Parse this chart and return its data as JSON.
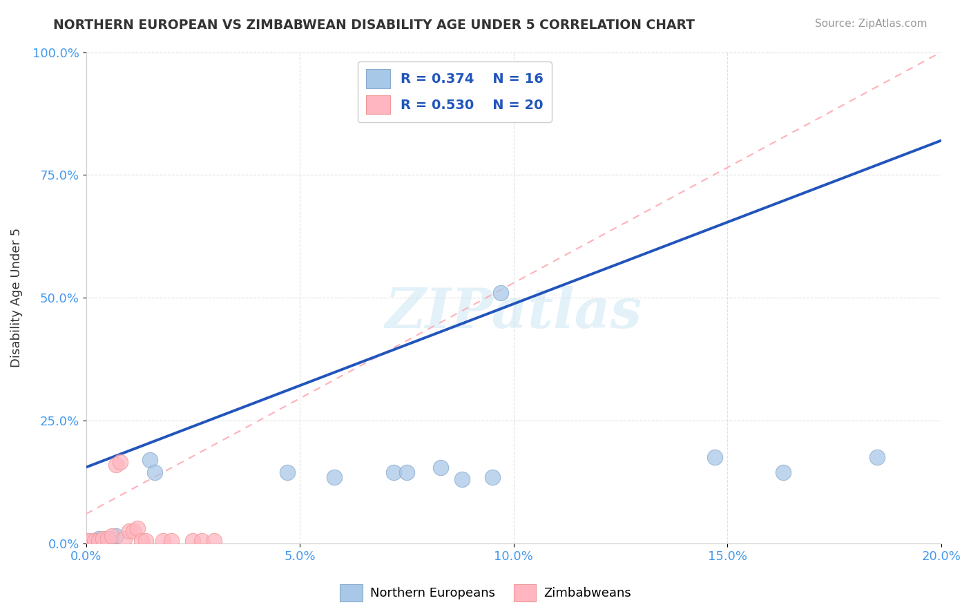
{
  "title": "NORTHERN EUROPEAN VS ZIMBABWEAN DISABILITY AGE UNDER 5 CORRELATION CHART",
  "source": "Source: ZipAtlas.com",
  "ylabel": "Disability Age Under 5",
  "xlabel_ticks": [
    "0.0%",
    "5.0%",
    "10.0%",
    "15.0%",
    "20.0%"
  ],
  "xlabel_vals": [
    0.0,
    0.05,
    0.1,
    0.15,
    0.2
  ],
  "ylabel_ticks": [
    "0.0%",
    "25.0%",
    "50.0%",
    "75.0%",
    "100.0%"
  ],
  "ylabel_vals": [
    0.0,
    0.25,
    0.5,
    0.75,
    1.0
  ],
  "xlim": [
    0.0,
    0.2
  ],
  "ylim": [
    0.0,
    1.0
  ],
  "watermark": "ZIPatlas",
  "legend_r_blue": "R = 0.374",
  "legend_n_blue": "N = 16",
  "legend_r_pink": "R = 0.530",
  "legend_n_pink": "N = 20",
  "blue_scatter_x": [
    0.003,
    0.005,
    0.007,
    0.015,
    0.016,
    0.047,
    0.058,
    0.072,
    0.075,
    0.083,
    0.088,
    0.095,
    0.097,
    0.147,
    0.163,
    0.185
  ],
  "blue_scatter_y": [
    0.01,
    0.01,
    0.015,
    0.17,
    0.145,
    0.145,
    0.135,
    0.145,
    0.145,
    0.155,
    0.13,
    0.135,
    0.51,
    0.175,
    0.145,
    0.175
  ],
  "pink_scatter_x": [
    0.0,
    0.001,
    0.002,
    0.003,
    0.004,
    0.005,
    0.006,
    0.007,
    0.008,
    0.009,
    0.01,
    0.011,
    0.012,
    0.013,
    0.014,
    0.018,
    0.02,
    0.025,
    0.027,
    0.03
  ],
  "pink_scatter_y": [
    0.005,
    0.005,
    0.005,
    0.005,
    0.01,
    0.01,
    0.015,
    0.16,
    0.165,
    0.01,
    0.025,
    0.025,
    0.03,
    0.005,
    0.005,
    0.005,
    0.005,
    0.005,
    0.005,
    0.005
  ],
  "blue_line_x": [
    0.0,
    0.2
  ],
  "blue_line_y": [
    0.155,
    0.82
  ],
  "pink_line_x": [
    0.0,
    0.2
  ],
  "pink_line_y": [
    0.06,
    1.0
  ],
  "blue_color": "#A8C8E8",
  "blue_line_color": "#2255BB",
  "pink_color": "#FFB6C1",
  "pink_line_color": "#FFB0B8",
  "background_color": "#FFFFFF",
  "grid_color": "#DDDDDD",
  "axis_label_color": "#4499EE",
  "title_color": "#333333"
}
